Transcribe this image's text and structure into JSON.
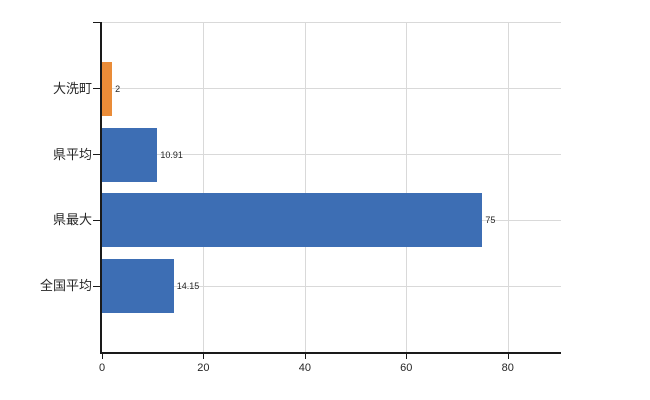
{
  "chart_data": {
    "type": "bar",
    "orientation": "horizontal",
    "title": "",
    "xlabel": "",
    "ylabel": "",
    "categories": [
      "大洗町",
      "県平均",
      "県最大",
      "全国平均"
    ],
    "values": [
      2,
      10.91,
      75,
      14.15
    ],
    "value_labels": [
      "2",
      "10.91",
      "75",
      "14.15"
    ],
    "bar_colors": [
      "#ea8c38",
      "#3d6eb4",
      "#3d6eb4",
      "#3d6eb4"
    ],
    "x_tick_values": [
      0,
      20,
      40,
      60,
      80
    ],
    "x_tick_labels": [
      "0",
      "20",
      "40",
      "60",
      "80"
    ],
    "xlim": [
      0,
      90.5
    ],
    "grid": true,
    "legend": "none",
    "colors": {
      "gridline": "#d9d9d9",
      "axis": "#1a1a1a",
      "text": "#262626",
      "highlight_bar": "#ea8c38",
      "default_bar": "#3d6eb4",
      "background": "#ffffff"
    }
  }
}
